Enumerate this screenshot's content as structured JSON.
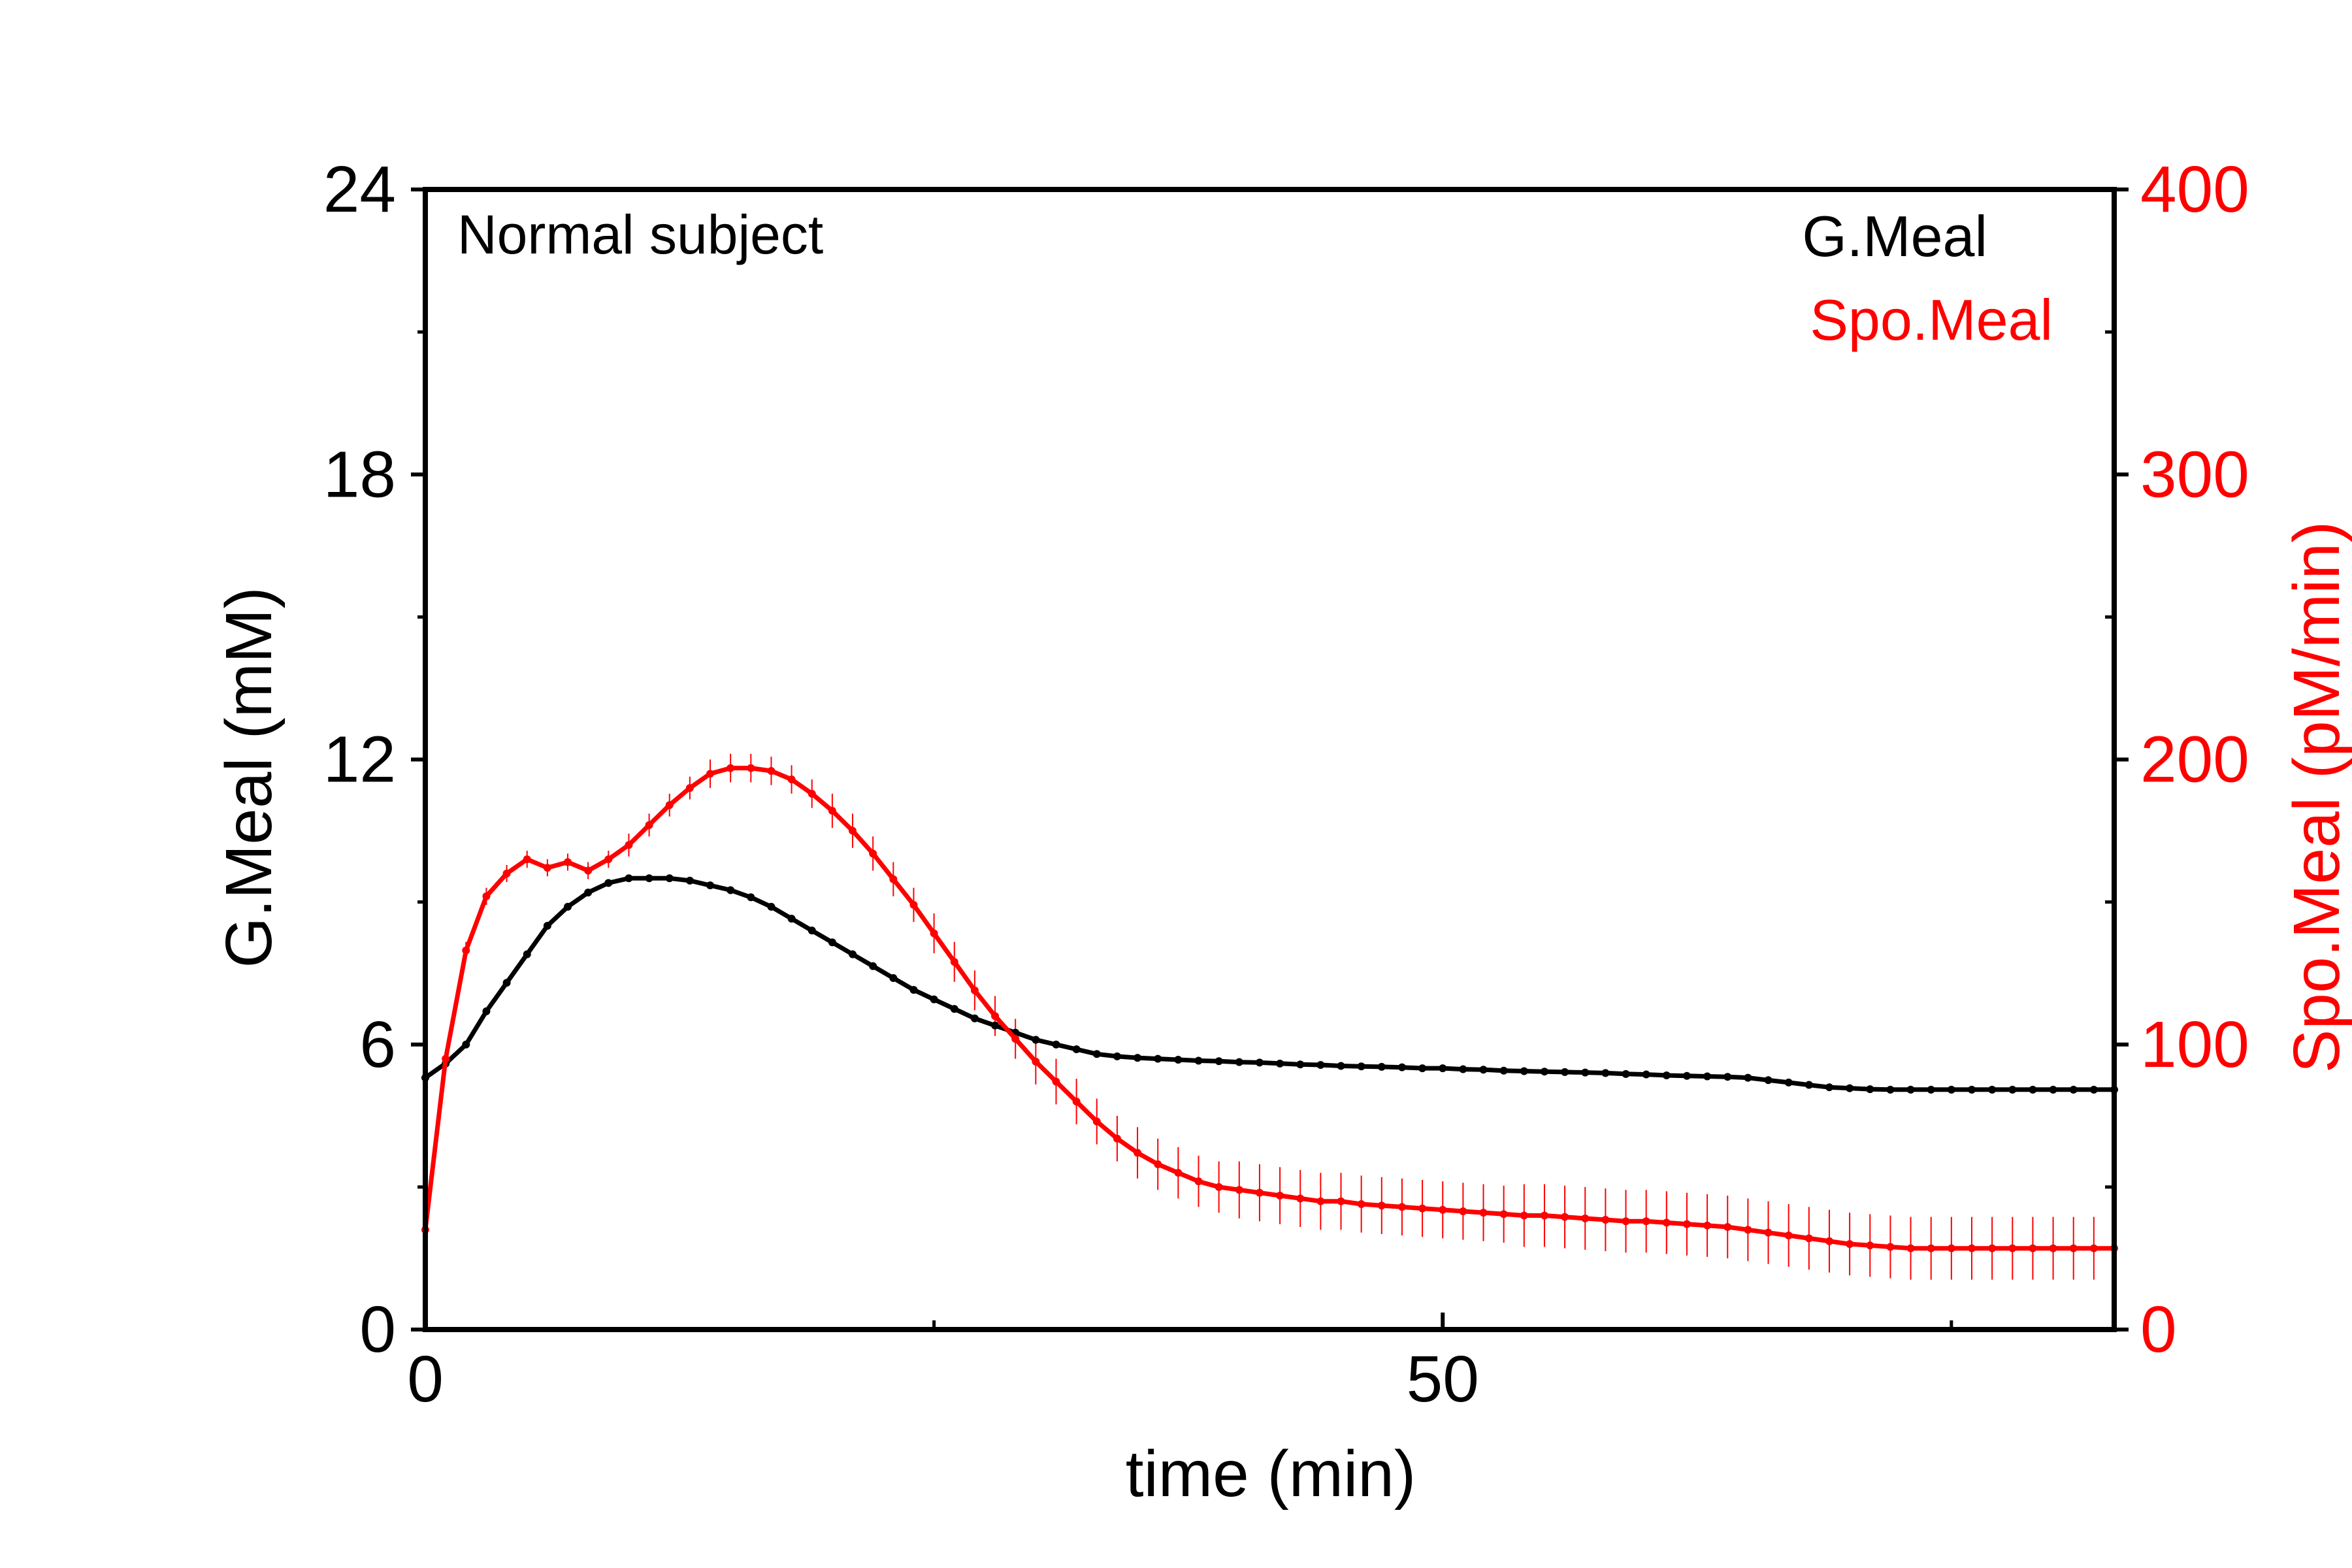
{
  "chart_data": {
    "type": "line",
    "annotation": "Normal subject",
    "xlabel": "time (min)",
    "ylabel_left": "G.Meal (mM)",
    "ylabel_right": "Spo.Meal (pM/min)",
    "xlim": [
      0,
      83
    ],
    "ylim_left": [
      0,
      24
    ],
    "ylim_right": [
      0,
      400
    ],
    "x_major_ticks": [
      0,
      50
    ],
    "x_minor_ticks": [
      25,
      75
    ],
    "y_left_ticks": [
      0,
      6,
      12,
      18,
      24
    ],
    "y_right_ticks": [
      0,
      100,
      200,
      300,
      400
    ],
    "grid": false,
    "legend_position": "top-right",
    "legend": [
      "G.Meal",
      "Spo.Meal"
    ],
    "series": [
      {
        "name": "G.Meal",
        "axis": "left",
        "color": "#000000",
        "points": [
          [
            0,
            5.3
          ],
          [
            1,
            5.6
          ],
          [
            2,
            6.0
          ],
          [
            3,
            6.7
          ],
          [
            4,
            7.3
          ],
          [
            5,
            7.9
          ],
          [
            6,
            8.5
          ],
          [
            7,
            8.9
          ],
          [
            8,
            9.2
          ],
          [
            9,
            9.4
          ],
          [
            10,
            9.5
          ],
          [
            11,
            9.5
          ],
          [
            12,
            9.5
          ],
          [
            13,
            9.45
          ],
          [
            14,
            9.35
          ],
          [
            15,
            9.25
          ],
          [
            16,
            9.1
          ],
          [
            17,
            8.9
          ],
          [
            18,
            8.65
          ],
          [
            19,
            8.4
          ],
          [
            20,
            8.15
          ],
          [
            21,
            7.9
          ],
          [
            22,
            7.65
          ],
          [
            23,
            7.4
          ],
          [
            24,
            7.15
          ],
          [
            25,
            6.95
          ],
          [
            26,
            6.75
          ],
          [
            27,
            6.55
          ],
          [
            28,
            6.4
          ],
          [
            29,
            6.25
          ],
          [
            30,
            6.1
          ],
          [
            31,
            6.0
          ],
          [
            32,
            5.9
          ],
          [
            33,
            5.8
          ],
          [
            34,
            5.75
          ],
          [
            35,
            5.72
          ],
          [
            36,
            5.7
          ],
          [
            37,
            5.68
          ],
          [
            38,
            5.66
          ],
          [
            39,
            5.65
          ],
          [
            40,
            5.63
          ],
          [
            41,
            5.62
          ],
          [
            42,
            5.6
          ],
          [
            43,
            5.58
          ],
          [
            44,
            5.57
          ],
          [
            45,
            5.55
          ],
          [
            46,
            5.54
          ],
          [
            47,
            5.53
          ],
          [
            48,
            5.52
          ],
          [
            49,
            5.5
          ],
          [
            50,
            5.5
          ],
          [
            51,
            5.48
          ],
          [
            52,
            5.47
          ],
          [
            53,
            5.45
          ],
          [
            54,
            5.44
          ],
          [
            55,
            5.43
          ],
          [
            56,
            5.42
          ],
          [
            57,
            5.41
          ],
          [
            58,
            5.4
          ],
          [
            59,
            5.38
          ],
          [
            60,
            5.37
          ],
          [
            61,
            5.35
          ],
          [
            62,
            5.34
          ],
          [
            63,
            5.33
          ],
          [
            64,
            5.32
          ],
          [
            65,
            5.3
          ],
          [
            66,
            5.25
          ],
          [
            67,
            5.2
          ],
          [
            68,
            5.15
          ],
          [
            69,
            5.1
          ],
          [
            70,
            5.08
          ],
          [
            71,
            5.06
          ],
          [
            72,
            5.05
          ],
          [
            73,
            5.05
          ],
          [
            74,
            5.05
          ],
          [
            75,
            5.05
          ],
          [
            76,
            5.05
          ],
          [
            77,
            5.05
          ],
          [
            78,
            5.05
          ],
          [
            79,
            5.05
          ],
          [
            80,
            5.05
          ],
          [
            81,
            5.05
          ],
          [
            82,
            5.05
          ],
          [
            83,
            5.05
          ]
        ]
      },
      {
        "name": "Spo.Meal",
        "axis": "right",
        "color": "#ff0000",
        "error_bars": true,
        "points": [
          [
            0,
            35,
            2
          ],
          [
            1,
            95,
            3
          ],
          [
            2,
            133,
            3
          ],
          [
            3,
            152,
            3
          ],
          [
            4,
            160,
            3
          ],
          [
            5,
            165,
            3
          ],
          [
            6,
            162,
            3
          ],
          [
            7,
            164,
            3
          ],
          [
            8,
            161,
            3
          ],
          [
            9,
            165,
            3
          ],
          [
            10,
            170,
            4
          ],
          [
            11,
            177,
            4
          ],
          [
            12,
            184,
            4
          ],
          [
            13,
            190,
            4
          ],
          [
            14,
            195,
            5
          ],
          [
            15,
            197,
            5
          ],
          [
            16,
            197,
            5
          ],
          [
            17,
            196,
            5
          ],
          [
            18,
            193,
            5
          ],
          [
            19,
            188,
            5
          ],
          [
            20,
            182,
            6
          ],
          [
            21,
            175,
            6
          ],
          [
            22,
            167,
            6
          ],
          [
            23,
            158,
            6
          ],
          [
            24,
            149,
            6
          ],
          [
            25,
            139,
            7
          ],
          [
            26,
            129,
            7
          ],
          [
            27,
            119,
            7
          ],
          [
            28,
            110,
            7
          ],
          [
            29,
            102,
            7
          ],
          [
            30,
            94,
            8
          ],
          [
            31,
            87,
            8
          ],
          [
            32,
            80,
            8
          ],
          [
            33,
            73,
            8
          ],
          [
            34,
            67,
            8
          ],
          [
            35,
            62,
            9
          ],
          [
            36,
            58,
            9
          ],
          [
            37,
            55,
            9
          ],
          [
            38,
            52,
            9
          ],
          [
            39,
            50,
            9
          ],
          [
            40,
            49,
            10
          ],
          [
            41,
            48,
            10
          ],
          [
            42,
            47,
            10
          ],
          [
            43,
            46,
            10
          ],
          [
            44,
            45,
            10
          ],
          [
            45,
            45,
            10
          ],
          [
            46,
            44,
            10
          ],
          [
            47,
            43.5,
            10
          ],
          [
            48,
            43,
            10
          ],
          [
            49,
            42.5,
            10
          ],
          [
            50,
            42,
            10
          ],
          [
            51,
            41.5,
            10
          ],
          [
            52,
            41,
            10
          ],
          [
            53,
            40.5,
            10
          ],
          [
            54,
            40,
            11
          ],
          [
            55,
            40,
            11
          ],
          [
            56,
            39.5,
            11
          ],
          [
            57,
            39,
            11
          ],
          [
            58,
            38.5,
            11
          ],
          [
            59,
            38,
            11
          ],
          [
            60,
            38,
            11
          ],
          [
            61,
            37.5,
            11
          ],
          [
            62,
            37,
            11
          ],
          [
            63,
            36.5,
            11
          ],
          [
            64,
            36,
            11
          ],
          [
            65,
            35,
            11
          ],
          [
            66,
            34,
            11
          ],
          [
            67,
            33,
            11
          ],
          [
            68,
            32,
            11
          ],
          [
            69,
            31,
            11
          ],
          [
            70,
            30,
            11
          ],
          [
            71,
            29.5,
            11
          ],
          [
            72,
            29,
            11
          ],
          [
            73,
            28.5,
            11
          ],
          [
            74,
            28.5,
            11
          ],
          [
            75,
            28.5,
            11
          ],
          [
            76,
            28.5,
            11
          ],
          [
            77,
            28.5,
            11
          ],
          [
            78,
            28.5,
            11
          ],
          [
            79,
            28.5,
            11
          ],
          [
            80,
            28.5,
            11
          ],
          [
            81,
            28.5,
            11
          ],
          [
            82,
            28.5,
            11
          ],
          [
            83,
            28.5,
            11
          ]
        ]
      }
    ]
  }
}
